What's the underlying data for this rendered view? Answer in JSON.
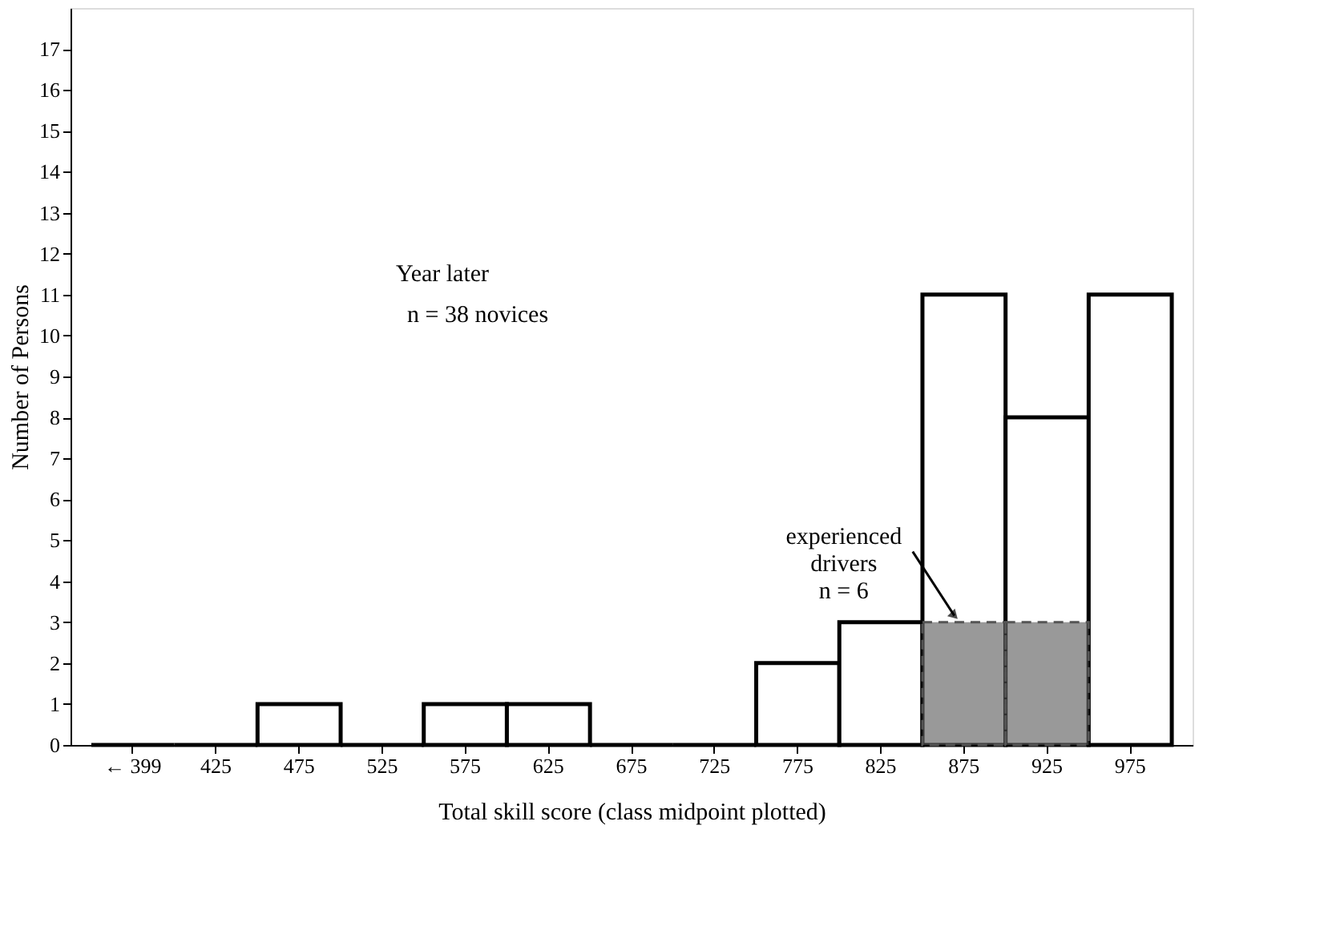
{
  "chart_data": {
    "type": "bar",
    "xlabel": "Total skill score (class midpoint plotted)",
    "ylabel": "Number of Persons",
    "categories": [
      "← 399",
      "425",
      "475",
      "525",
      "575",
      "625",
      "675",
      "725",
      "775",
      "825",
      "875",
      "925",
      "975"
    ],
    "series": [
      {
        "color": "#000000",
        "values": [
          0,
          0,
          1,
          0,
          1,
          1,
          0,
          0,
          2,
          3,
          11,
          8,
          11
        ]
      },
      {
        "color": "#555555",
        "line_style": "dashed",
        "values": [
          null,
          null,
          null,
          null,
          null,
          null,
          null,
          null,
          null,
          null,
          3,
          3,
          null
        ]
      }
    ],
    "ylim": [
      0,
      18
    ],
    "yticks": [
      0,
      1,
      2,
      3,
      4,
      5,
      6,
      7,
      8,
      9,
      10,
      11,
      12,
      13,
      14,
      15,
      16,
      17
    ],
    "grid": false,
    "annotations": [
      "Year later",
      "n = 38 novices",
      {
        "text": "experienced\ndrivers\nn = 6",
        "x": "875",
        "y": 3
      }
    ]
  }
}
